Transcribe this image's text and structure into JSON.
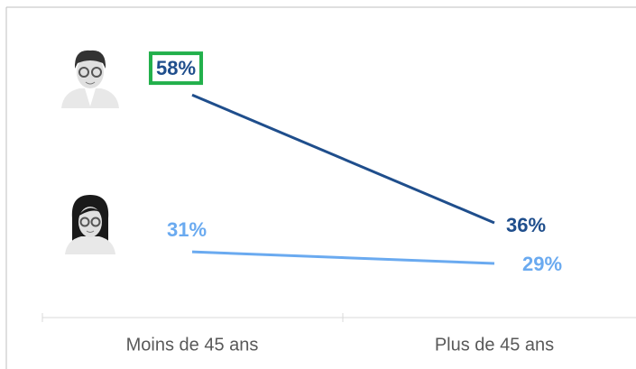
{
  "chart_data": {
    "type": "line",
    "categories": [
      "Moins de 45 ans",
      "Plus de 45 ans"
    ],
    "series": [
      {
        "color": "#1f4e8c",
        "values": [
          58,
          36
        ],
        "value_labels": [
          "58%",
          "36%"
        ]
      },
      {
        "color": "#6aaaf0",
        "values": [
          31,
          29
        ],
        "value_labels": [
          "31%",
          "29%"
        ]
      }
    ],
    "ylim": [
      20,
      70
    ]
  }
}
